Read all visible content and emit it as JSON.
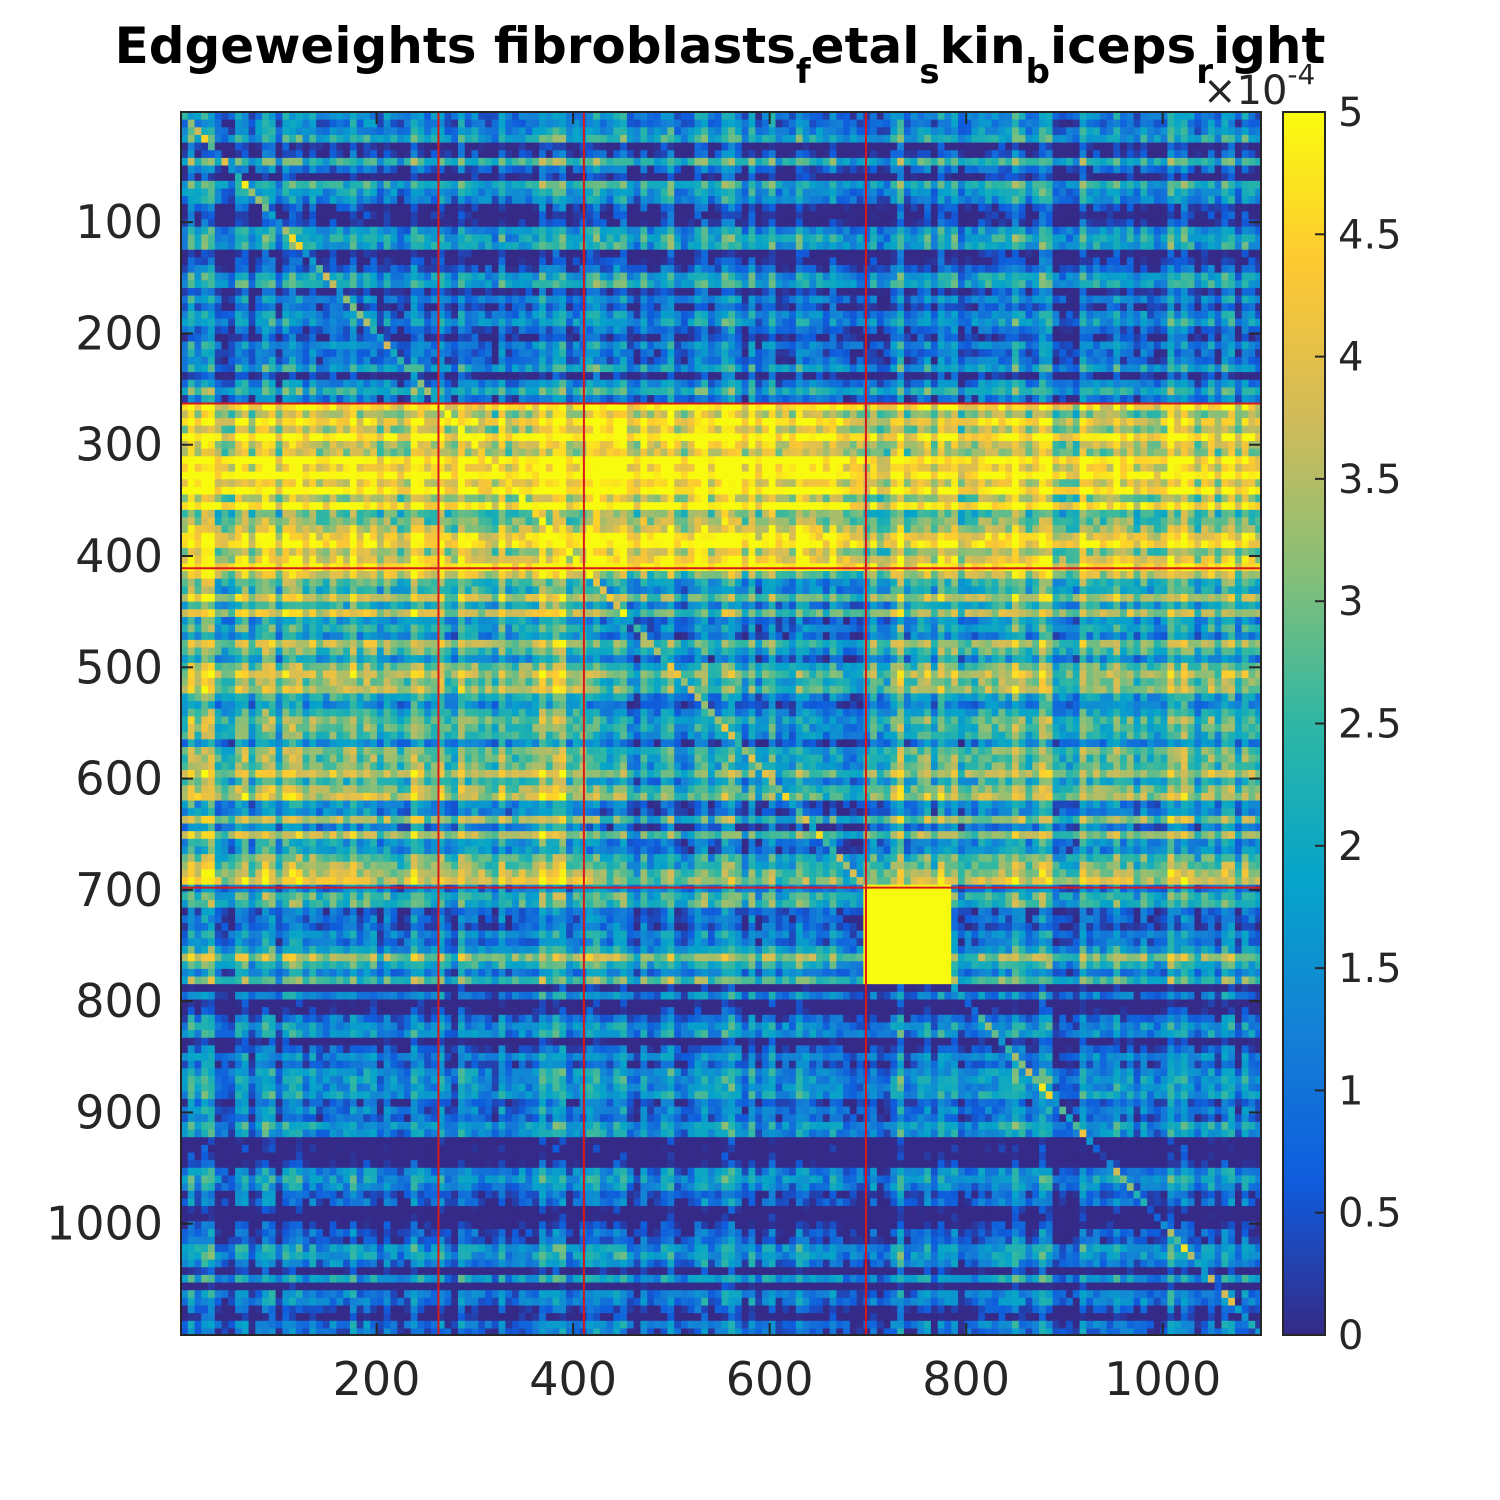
{
  "chart_data": {
    "type": "heatmap",
    "title": {
      "segments": [
        {
          "text": "Edgeweights fibroblasts",
          "sub": false
        },
        {
          "text": "f",
          "sub": true
        },
        {
          "text": "etal",
          "sub": false
        },
        {
          "text": "s",
          "sub": true
        },
        {
          "text": "kin",
          "sub": false
        },
        {
          "text": "b",
          "sub": true
        },
        {
          "text": "iceps",
          "sub": false
        },
        {
          "text": "r",
          "sub": true
        },
        {
          "text": "ight",
          "sub": false
        }
      ]
    },
    "n_nodes": 1100,
    "xlim": [
      1,
      1100
    ],
    "ylim": [
      1,
      1100
    ],
    "y_reversed": true,
    "x_ticks": [
      200,
      400,
      600,
      800,
      1000
    ],
    "x_tick_labels": [
      "200",
      "400",
      "600",
      "800",
      "1000"
    ],
    "y_ticks": [
      100,
      200,
      300,
      400,
      500,
      600,
      700,
      800,
      900,
      1000
    ],
    "y_tick_labels": [
      "100",
      "200",
      "300",
      "400",
      "500",
      "600",
      "700",
      "800",
      "900",
      "1000"
    ],
    "group_boundaries": [
      263,
      411,
      698
    ],
    "boundary_color": "#d7191c",
    "blocks": [
      {
        "rows": [
          263,
          411
        ],
        "cols": [
          1,
          411
        ],
        "level": 0.85
      },
      {
        "rows": [
          263,
          411
        ],
        "cols": [
          411,
          698
        ],
        "level": 0.92
      },
      {
        "rows": [
          263,
          411
        ],
        "cols": [
          698,
          1100
        ],
        "level": 0.8
      },
      {
        "rows": [
          411,
          698
        ],
        "cols": [
          1,
          411
        ],
        "level": 0.55
      },
      {
        "rows": [
          411,
          698
        ],
        "cols": [
          411,
          698
        ],
        "level": 0.35
      },
      {
        "rows": [
          411,
          698
        ],
        "cols": [
          698,
          1100
        ],
        "level": 0.5
      },
      {
        "rows": [
          698,
          782
        ],
        "cols": [
          1,
          698
        ],
        "level": 0.4
      },
      {
        "rows": [
          698,
          782
        ],
        "cols": [
          698,
          782
        ],
        "level": 1.0
      },
      {
        "rows": [
          698,
          782
        ],
        "cols": [
          782,
          1100
        ],
        "level": 0.38
      },
      {
        "rows": [
          1,
          263
        ],
        "cols": [
          1,
          1100
        ],
        "level": 0.22
      },
      {
        "rows": [
          782,
          1100
        ],
        "cols": [
          1,
          1100
        ],
        "level": 0.12
      }
    ],
    "colorbar": {
      "colormap": "parula",
      "range": [
        0,
        5
      ],
      "ticks": [
        0,
        0.5,
        1,
        1.5,
        2,
        2.5,
        3,
        3.5,
        4,
        4.5,
        5
      ],
      "tick_labels": [
        "0",
        "0.5",
        "1",
        "1.5",
        "2",
        "2.5",
        "3",
        "3.5",
        "4",
        "4.5",
        "5"
      ],
      "exponent_prefix": "×10",
      "exponent_power": "-4",
      "stops": [
        "#352a87",
        "#0f5cdd",
        "#1481d6",
        "#06a4ca",
        "#2eb7a4",
        "#87bf77",
        "#d1bb59",
        "#fec832",
        "#f9fb0e"
      ]
    }
  }
}
